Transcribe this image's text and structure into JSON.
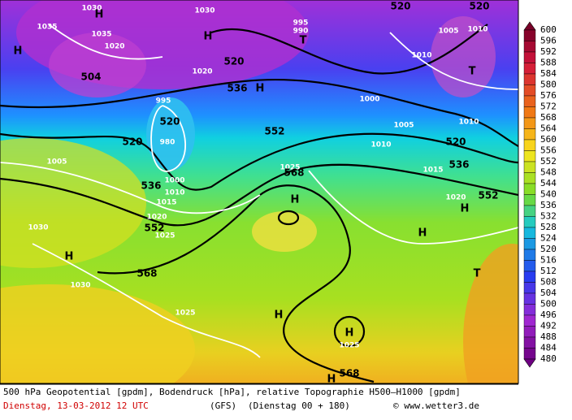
{
  "map": {
    "contour_labels": [
      "520",
      "520",
      "1030",
      "1030",
      "H",
      "H",
      "1035",
      "1035",
      "995",
      "990",
      "T",
      "1005",
      "1010",
      "H",
      "1020",
      "520",
      "1010",
      "T",
      "504",
      "1020",
      "536",
      "H",
      "1000",
      "995",
      "520",
      "1005",
      "1010",
      "552",
      "980",
      "520",
      "1010",
      "520",
      "1005",
      "1025",
      "568",
      "536",
      "1015",
      "1000",
      "536",
      "1010",
      "1020",
      "552",
      "H",
      "1015",
      "H",
      "1020",
      "1030",
      "552",
      "1025",
      "H",
      "H",
      "568",
      "T",
      "1030",
      "1025",
      "H",
      "H",
      "1025",
      "568",
      "H"
    ]
  },
  "colorbar": {
    "labels": [
      600,
      596,
      592,
      588,
      584,
      580,
      576,
      572,
      568,
      564,
      560,
      556,
      552,
      548,
      544,
      540,
      536,
      532,
      528,
      524,
      520,
      516,
      512,
      508,
      504,
      500,
      496,
      492,
      488,
      484,
      480
    ]
  },
  "footer": {
    "line1": "500 hPa Geopotential [gpdm], Bodendruck [hPa], relative Topographie H500–H1000 [gpdm]",
    "date": "Dienstag, 13-03-2012   12 UTC",
    "model": "(GFS)",
    "run": "(Dienstag 00 + 180)",
    "credit": "© www.wetter3.de"
  }
}
